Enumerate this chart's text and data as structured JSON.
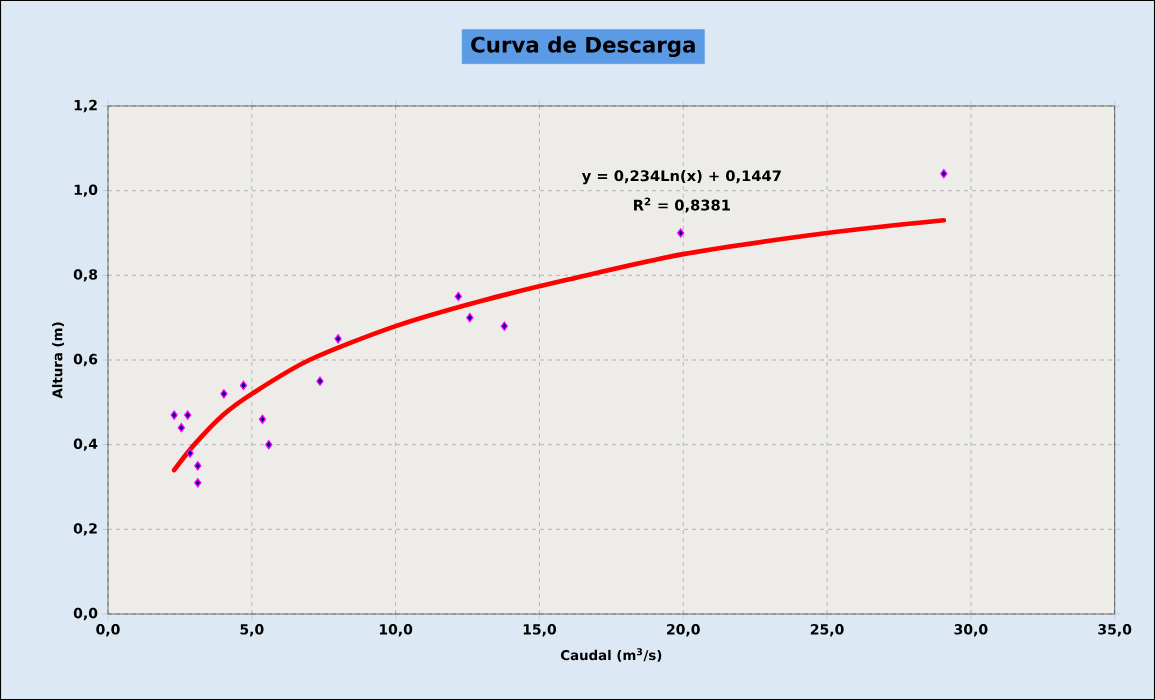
{
  "chart_data": {
    "type": "scatter",
    "title": "Curva de Descarga",
    "xlabel": "Caudal (m$^{3}$/s)",
    "ylabel": "Altura (m)",
    "series": [
      {
        "color": "#ff00ff",
        "marker": "diamond",
        "x": [
          2.3,
          2.77,
          2.55,
          2.85,
          3.12,
          3.12,
          4.03,
          4.71,
          5.37,
          5.59,
          7.37,
          8.0,
          12.18,
          12.58,
          13.78,
          19.91,
          29.06
        ],
        "values": [
          0.47,
          0.47,
          0.44,
          0.38,
          0.35,
          0.31,
          0.52,
          0.54,
          0.46,
          0.4,
          0.55,
          0.65,
          0.75,
          0.7,
          0.68,
          0.9,
          1.04
        ]
      },
      {
        "type": "line",
        "color": "#ff0000",
        "marker": "none",
        "x": [
          2.3,
          3,
          4,
          5,
          7,
          10,
          13,
          16,
          20,
          25,
          29.06
        ],
        "values": [
          0.34,
          0.4,
          0.47,
          0.52,
          0.6,
          0.68,
          0.74,
          0.79,
          0.85,
          0.9,
          0.93
        ]
      }
    ],
    "annotations": [
      "y = 0,234Ln(x) + 0,1447",
      "R$^{2}$ = 0,8381"
    ],
    "xlim": [
      0,
      35
    ],
    "ylim": [
      0,
      1.2
    ],
    "xticks": [
      {
        "value": 0,
        "label": "0,0"
      },
      {
        "value": 5,
        "label": "5,0"
      },
      {
        "value": 10,
        "label": "10,0"
      },
      {
        "value": 15,
        "label": "15,0"
      },
      {
        "value": 20,
        "label": "20,0"
      },
      {
        "value": 25,
        "label": "25,0"
      },
      {
        "value": 30,
        "label": "30,0"
      },
      {
        "value": 35,
        "label": "35,0"
      }
    ],
    "yticks": [
      {
        "value": 0,
        "label": "0,0"
      },
      {
        "value": 0.2,
        "label": "0,2"
      },
      {
        "value": 0.4,
        "label": "0,4"
      },
      {
        "value": 0.6,
        "label": "0,6"
      },
      {
        "value": 0.8,
        "label": "0,8"
      },
      {
        "value": 1.0,
        "label": "1,0"
      },
      {
        "value": 1.2,
        "label": "1,2"
      }
    ],
    "grid": true,
    "legend": false
  }
}
